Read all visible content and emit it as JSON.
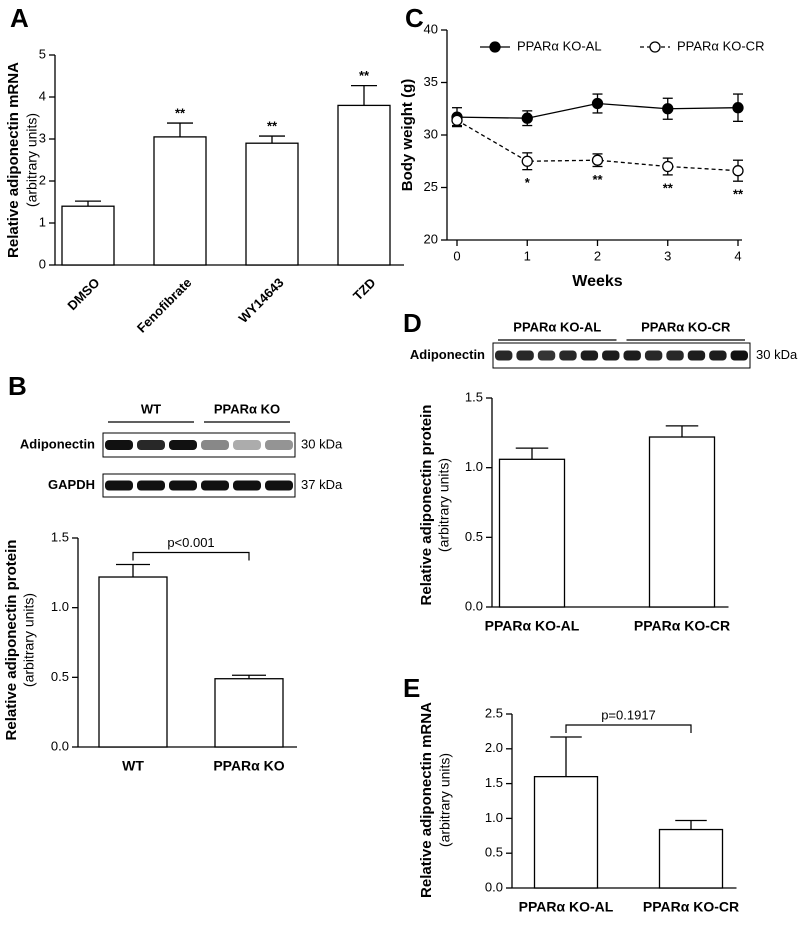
{
  "chart_data": [
    {
      "type": "bar",
      "panel": "A",
      "y_label": "Relative adiponectin mRNA",
      "y_label_sub": "(arbitrary units)",
      "categories": [
        "DMSO",
        "Fenofibrate",
        "WY14643",
        "TZD"
      ],
      "values": [
        1.4,
        3.05,
        2.9,
        3.8
      ],
      "errors": [
        0.12,
        0.33,
        0.17,
        0.47
      ],
      "annotations": [
        null,
        "**",
        "**",
        "**"
      ],
      "ylim": [
        0,
        5
      ],
      "yticks": [
        0,
        1,
        2,
        3,
        4,
        5
      ],
      "color": "#ffffff"
    },
    {
      "type": "bar",
      "panel": "B",
      "y_label": "Relative adiponectin protein",
      "y_label_sub": "(arbitrary units)",
      "categories": [
        "WT",
        "PPARα KO"
      ],
      "values": [
        1.22,
        0.49
      ],
      "errors": [
        0.09,
        0.025
      ],
      "comparison": "p<0.001",
      "ylim": [
        0,
        1.5
      ],
      "yticks": [
        {
          "value": 0,
          "label": "0.0"
        },
        0.5,
        {
          "value": 1,
          "label": "1.0"
        },
        1.5
      ],
      "color": "#ffffff",
      "blot": {
        "groups": [
          "WT",
          "PPARα KO"
        ],
        "rows": [
          {
            "label": "Adiponectin",
            "size": "30 kDa"
          },
          {
            "label": "GAPDH",
            "size": "37 kDa"
          }
        ]
      }
    },
    {
      "type": "line",
      "panel": "C",
      "x_label": "Weeks",
      "y_label": "Body weight (g)",
      "x": [
        0,
        1,
        2,
        3,
        4
      ],
      "series": [
        {
          "name": "PPARα KO-AL",
          "color": "#000000",
          "values": [
            31.7,
            31.6,
            33.0,
            32.5,
            32.6
          ],
          "errors": [
            0.9,
            0.7,
            0.9,
            1.0,
            1.3
          ]
        },
        {
          "name": "PPARα KO-CR",
          "color": "#000000",
          "values": [
            31.4,
            27.5,
            27.6,
            27.0,
            26.6
          ],
          "errors": [
            0.5,
            0.8,
            0.6,
            0.8,
            1.0
          ],
          "dashed": true,
          "open_marker": true,
          "annotations": [
            null,
            "*",
            "**",
            "**",
            "**"
          ]
        }
      ],
      "xlim": [
        0,
        4
      ],
      "xticks": [
        0,
        1,
        2,
        3,
        4
      ],
      "ylim": [
        20,
        40
      ],
      "yticks": [
        20,
        25,
        30,
        35,
        40
      ]
    },
    {
      "type": "bar",
      "panel": "D",
      "y_label": "Relative adiponectin protein",
      "y_label_sub": "(arbitrary units)",
      "categories": [
        "PPARα KO-AL",
        "PPARα KO-CR"
      ],
      "values": [
        1.06,
        1.22
      ],
      "errors": [
        0.08,
        0.08
      ],
      "ylim": [
        0,
        1.5
      ],
      "yticks": [
        {
          "value": 0,
          "label": "0.0"
        },
        0.5,
        {
          "value": 1,
          "label": "1.0"
        },
        1.5
      ],
      "color": "#ffffff",
      "blot": {
        "groups": [
          "PPARα KO-AL",
          "PPARα KO-CR"
        ],
        "rows": [
          {
            "label": "Adiponectin",
            "size": "30 kDa"
          }
        ]
      }
    },
    {
      "type": "bar",
      "panel": "E",
      "y_label": "Relative adiponectin mRNA",
      "y_label_sub": "(arbitrary units)",
      "categories": [
        "PPARα KO-AL",
        "PPARα KO-CR"
      ],
      "values": [
        1.6,
        0.84
      ],
      "errors": [
        0.57,
        0.13
      ],
      "comparison": "p=0.1917",
      "ylim": [
        0,
        2.5
      ],
      "yticks": [
        {
          "value": 0,
          "label": "0.0"
        },
        0.5,
        {
          "value": 1,
          "label": "1.0"
        },
        1.5,
        {
          "value": 2,
          "label": "2.0"
        },
        2.5
      ],
      "color": "#ffffff"
    }
  ]
}
